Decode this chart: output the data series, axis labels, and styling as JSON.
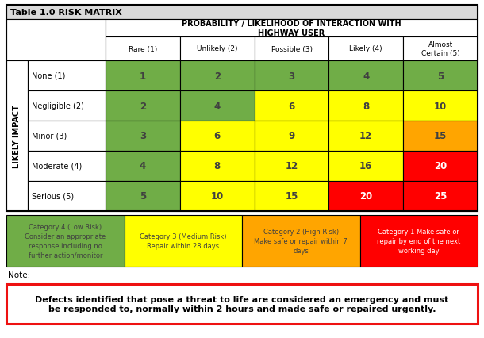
{
  "title": "Table 1.0 RISK MATRIX",
  "col_header_main": "PROBABILITY / LIKELIHOOD OF INTERACTION WITH\nHIGHWAY USER",
  "col_headers": [
    "Rare (1)",
    "Unlikely (2)",
    "Possible (3)",
    "Likely (4)",
    "Almost\nCertain (5)"
  ],
  "row_label_main": "LIKELY IMPACT",
  "row_headers": [
    "None (1)",
    "Negligible (2)",
    "Minor (3)",
    "Moderate (4)",
    "Serious (5)"
  ],
  "matrix_values": [
    [
      1,
      2,
      3,
      4,
      5
    ],
    [
      2,
      4,
      6,
      8,
      10
    ],
    [
      3,
      6,
      9,
      12,
      15
    ],
    [
      4,
      8,
      12,
      16,
      20
    ],
    [
      5,
      10,
      15,
      20,
      25
    ]
  ],
  "cell_colors": [
    [
      "#70AD47",
      "#70AD47",
      "#70AD47",
      "#70AD47",
      "#70AD47"
    ],
    [
      "#70AD47",
      "#70AD47",
      "#FFFF00",
      "#FFFF00",
      "#FFFF00"
    ],
    [
      "#70AD47",
      "#FFFF00",
      "#FFFF00",
      "#FFFF00",
      "#FFA500"
    ],
    [
      "#70AD47",
      "#FFFF00",
      "#FFFF00",
      "#FFFF00",
      "#FF0000"
    ],
    [
      "#70AD47",
      "#FFFF00",
      "#FFFF00",
      "#FF0000",
      "#FF0000"
    ]
  ],
  "cat_text_colors": [
    "#404040",
    "#404040",
    "#404040",
    "#FFFFFF"
  ],
  "categories": [
    {
      "text": "Category 4 (Low Risk)\nConsider an appropriate\nresponse including no\nfurther action/monitor",
      "color": "#70AD47"
    },
    {
      "text": "Category 3 (Medium Risk)\nRepair within 28 days",
      "color": "#FFFF00"
    },
    {
      "text": "Category 2 (High Risk)\nMake safe or repair within 7\ndays",
      "color": "#FFA500"
    },
    {
      "text": "Category 1 Make safe or\nrepair by end of the next\nworking day",
      "color": "#FF0000"
    }
  ],
  "note_text": "Note:",
  "emergency_text": "Defects identified that pose a threat to life are considered an emergency and must\nbe responded to, normally within 2 hours and made safe or repaired urgently.",
  "title_bg": "#D9D9D9",
  "lw": 0.8
}
